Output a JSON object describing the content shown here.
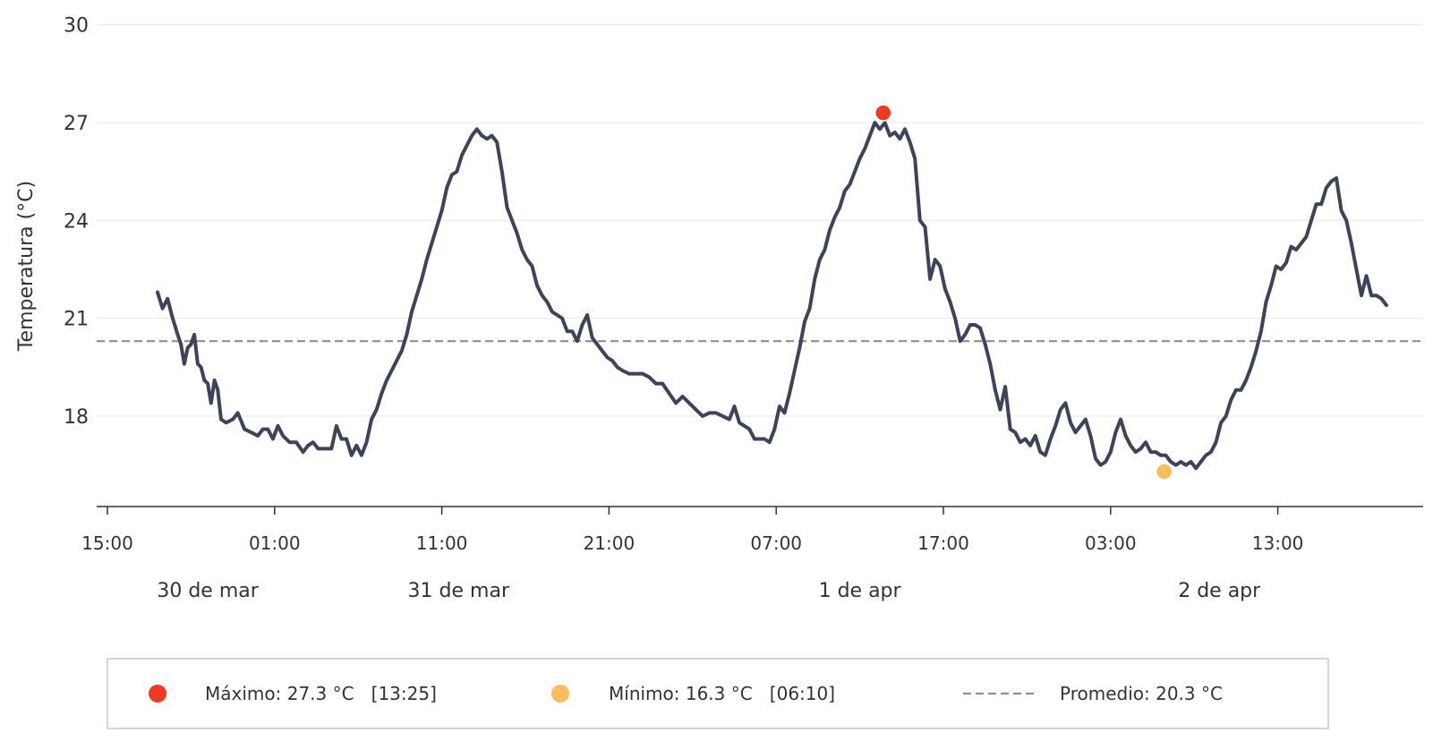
{
  "chart_data": {
    "type": "line",
    "ylabel": "Temperatura (°C)",
    "ylim": [
      14.2,
      30.1
    ],
    "yticks": [
      18,
      21,
      24,
      27,
      30
    ],
    "xlim_hours": [
      -0.3,
      78.9
    ],
    "grid": "horizontal",
    "x_ticks": [
      {
        "label": "15:00",
        "h": 0
      },
      {
        "label": "01:00",
        "h": 10
      },
      {
        "label": "11:00",
        "h": 20
      },
      {
        "label": "21:00",
        "h": 30
      },
      {
        "label": "07:00",
        "h": 40
      },
      {
        "label": "17:00",
        "h": 50
      },
      {
        "label": "03:00",
        "h": 60
      },
      {
        "label": "13:00",
        "h": 70
      }
    ],
    "date_labels": [
      {
        "label": "30 de mar",
        "h": 6
      },
      {
        "label": "31 de mar",
        "h": 21
      },
      {
        "label": "1 de apr",
        "h": 45
      },
      {
        "label": "2 de apr",
        "h": 66.5
      }
    ],
    "series": [
      {
        "color": "#3d4459",
        "points": [
          [
            3.0,
            21.8
          ],
          [
            3.3,
            21.3
          ],
          [
            3.6,
            21.6
          ],
          [
            3.9,
            21.0
          ],
          [
            4.2,
            20.5
          ],
          [
            4.4,
            20.2
          ],
          [
            4.6,
            19.6
          ],
          [
            4.8,
            20.1
          ],
          [
            5.0,
            20.2
          ],
          [
            5.2,
            20.5
          ],
          [
            5.4,
            19.6
          ],
          [
            5.6,
            19.5
          ],
          [
            5.8,
            19.1
          ],
          [
            6.0,
            19.0
          ],
          [
            6.2,
            18.4
          ],
          [
            6.4,
            19.1
          ],
          [
            6.6,
            18.8
          ],
          [
            6.8,
            17.9
          ],
          [
            7.1,
            17.8
          ],
          [
            7.5,
            17.9
          ],
          [
            7.8,
            18.1
          ],
          [
            8.2,
            17.6
          ],
          [
            8.6,
            17.5
          ],
          [
            9.0,
            17.4
          ],
          [
            9.3,
            17.6
          ],
          [
            9.6,
            17.6
          ],
          [
            9.9,
            17.3
          ],
          [
            10.2,
            17.7
          ],
          [
            10.5,
            17.4
          ],
          [
            10.9,
            17.2
          ],
          [
            11.3,
            17.2
          ],
          [
            11.7,
            16.9
          ],
          [
            12.0,
            17.1
          ],
          [
            12.3,
            17.2
          ],
          [
            12.6,
            17.0
          ],
          [
            13.0,
            17.0
          ],
          [
            13.4,
            17.0
          ],
          [
            13.7,
            17.7
          ],
          [
            14.0,
            17.3
          ],
          [
            14.3,
            17.3
          ],
          [
            14.6,
            16.8
          ],
          [
            14.9,
            17.1
          ],
          [
            15.2,
            16.8
          ],
          [
            15.5,
            17.2
          ],
          [
            15.8,
            17.9
          ],
          [
            16.1,
            18.2
          ],
          [
            16.4,
            18.7
          ],
          [
            16.7,
            19.1
          ],
          [
            17.0,
            19.4
          ],
          [
            17.3,
            19.7
          ],
          [
            17.6,
            20.0
          ],
          [
            17.9,
            20.5
          ],
          [
            18.2,
            21.2
          ],
          [
            18.5,
            21.7
          ],
          [
            18.8,
            22.2
          ],
          [
            19.1,
            22.8
          ],
          [
            19.4,
            23.3
          ],
          [
            19.7,
            23.8
          ],
          [
            20.0,
            24.3
          ],
          [
            20.3,
            25.0
          ],
          [
            20.6,
            25.4
          ],
          [
            20.9,
            25.5
          ],
          [
            21.2,
            26.0
          ],
          [
            21.5,
            26.3
          ],
          [
            21.8,
            26.6
          ],
          [
            22.1,
            26.8
          ],
          [
            22.4,
            26.6
          ],
          [
            22.7,
            26.5
          ],
          [
            23.0,
            26.6
          ],
          [
            23.3,
            26.4
          ],
          [
            23.6,
            25.5
          ],
          [
            23.9,
            24.4
          ],
          [
            24.2,
            24.0
          ],
          [
            24.5,
            23.6
          ],
          [
            24.8,
            23.1
          ],
          [
            25.1,
            22.8
          ],
          [
            25.4,
            22.6
          ],
          [
            25.7,
            22.0
          ],
          [
            26.0,
            21.7
          ],
          [
            26.3,
            21.5
          ],
          [
            26.6,
            21.2
          ],
          [
            26.9,
            21.1
          ],
          [
            27.2,
            21.0
          ],
          [
            27.5,
            20.6
          ],
          [
            27.8,
            20.6
          ],
          [
            28.1,
            20.3
          ],
          [
            28.4,
            20.8
          ],
          [
            28.7,
            21.1
          ],
          [
            29.0,
            20.4
          ],
          [
            29.3,
            20.2
          ],
          [
            29.6,
            20.0
          ],
          [
            29.9,
            19.8
          ],
          [
            30.2,
            19.7
          ],
          [
            30.5,
            19.5
          ],
          [
            30.8,
            19.4
          ],
          [
            31.2,
            19.3
          ],
          [
            31.6,
            19.3
          ],
          [
            32.0,
            19.3
          ],
          [
            32.4,
            19.2
          ],
          [
            32.8,
            19.0
          ],
          [
            33.2,
            19.0
          ],
          [
            33.6,
            18.7
          ],
          [
            34.0,
            18.4
          ],
          [
            34.4,
            18.6
          ],
          [
            34.8,
            18.4
          ],
          [
            35.2,
            18.2
          ],
          [
            35.6,
            18.0
          ],
          [
            36.0,
            18.1
          ],
          [
            36.4,
            18.1
          ],
          [
            36.8,
            18.0
          ],
          [
            37.2,
            17.9
          ],
          [
            37.5,
            18.3
          ],
          [
            37.8,
            17.8
          ],
          [
            38.1,
            17.7
          ],
          [
            38.4,
            17.6
          ],
          [
            38.7,
            17.3
          ],
          [
            39.0,
            17.3
          ],
          [
            39.3,
            17.3
          ],
          [
            39.6,
            17.2
          ],
          [
            39.9,
            17.6
          ],
          [
            40.2,
            18.3
          ],
          [
            40.5,
            18.1
          ],
          [
            40.8,
            18.7
          ],
          [
            41.1,
            19.4
          ],
          [
            41.4,
            20.1
          ],
          [
            41.7,
            20.9
          ],
          [
            42.0,
            21.3
          ],
          [
            42.3,
            22.2
          ],
          [
            42.6,
            22.8
          ],
          [
            42.9,
            23.1
          ],
          [
            43.2,
            23.7
          ],
          [
            43.5,
            24.1
          ],
          [
            43.8,
            24.4
          ],
          [
            44.1,
            24.9
          ],
          [
            44.4,
            25.1
          ],
          [
            44.7,
            25.5
          ],
          [
            45.0,
            25.9
          ],
          [
            45.3,
            26.2
          ],
          [
            45.6,
            26.6
          ],
          [
            45.9,
            27.0
          ],
          [
            46.2,
            26.8
          ],
          [
            46.5,
            27.0
          ],
          [
            46.8,
            26.6
          ],
          [
            47.1,
            26.7
          ],
          [
            47.4,
            26.5
          ],
          [
            47.7,
            26.8
          ],
          [
            48.0,
            26.4
          ],
          [
            48.3,
            25.9
          ],
          [
            48.6,
            24.0
          ],
          [
            48.9,
            23.8
          ],
          [
            49.2,
            22.2
          ],
          [
            49.5,
            22.8
          ],
          [
            49.8,
            22.6
          ],
          [
            50.1,
            21.9
          ],
          [
            50.4,
            21.5
          ],
          [
            50.7,
            21.0
          ],
          [
            51.0,
            20.3
          ],
          [
            51.3,
            20.5
          ],
          [
            51.6,
            20.8
          ],
          [
            51.9,
            20.8
          ],
          [
            52.2,
            20.7
          ],
          [
            52.5,
            20.2
          ],
          [
            52.8,
            19.6
          ],
          [
            53.1,
            18.8
          ],
          [
            53.4,
            18.2
          ],
          [
            53.7,
            18.9
          ],
          [
            54.0,
            17.6
          ],
          [
            54.3,
            17.5
          ],
          [
            54.6,
            17.2
          ],
          [
            54.9,
            17.3
          ],
          [
            55.2,
            17.1
          ],
          [
            55.5,
            17.4
          ],
          [
            55.8,
            16.9
          ],
          [
            56.1,
            16.8
          ],
          [
            56.4,
            17.3
          ],
          [
            56.7,
            17.7
          ],
          [
            57.0,
            18.2
          ],
          [
            57.3,
            18.4
          ],
          [
            57.6,
            17.8
          ],
          [
            57.9,
            17.5
          ],
          [
            58.2,
            17.7
          ],
          [
            58.5,
            17.9
          ],
          [
            58.8,
            17.4
          ],
          [
            59.1,
            16.7
          ],
          [
            59.4,
            16.5
          ],
          [
            59.7,
            16.6
          ],
          [
            60.0,
            16.9
          ],
          [
            60.3,
            17.5
          ],
          [
            60.6,
            17.9
          ],
          [
            60.9,
            17.4
          ],
          [
            61.2,
            17.1
          ],
          [
            61.5,
            16.9
          ],
          [
            61.8,
            17.0
          ],
          [
            62.1,
            17.2
          ],
          [
            62.4,
            16.9
          ],
          [
            62.7,
            16.9
          ],
          [
            63.0,
            16.8
          ],
          [
            63.3,
            16.8
          ],
          [
            63.6,
            16.6
          ],
          [
            63.9,
            16.5
          ],
          [
            64.2,
            16.6
          ],
          [
            64.5,
            16.5
          ],
          [
            64.8,
            16.6
          ],
          [
            65.1,
            16.4
          ],
          [
            65.4,
            16.6
          ],
          [
            65.7,
            16.8
          ],
          [
            66.0,
            16.9
          ],
          [
            66.3,
            17.2
          ],
          [
            66.6,
            17.8
          ],
          [
            66.9,
            18.0
          ],
          [
            67.2,
            18.5
          ],
          [
            67.5,
            18.8
          ],
          [
            67.8,
            18.8
          ],
          [
            68.1,
            19.1
          ],
          [
            68.4,
            19.5
          ],
          [
            68.7,
            20.0
          ],
          [
            69.0,
            20.6
          ],
          [
            69.3,
            21.5
          ],
          [
            69.6,
            22.0
          ],
          [
            69.9,
            22.6
          ],
          [
            70.2,
            22.5
          ],
          [
            70.5,
            22.7
          ],
          [
            70.8,
            23.2
          ],
          [
            71.1,
            23.1
          ],
          [
            71.4,
            23.3
          ],
          [
            71.7,
            23.5
          ],
          [
            72.0,
            24.0
          ],
          [
            72.3,
            24.5
          ],
          [
            72.6,
            24.5
          ],
          [
            72.9,
            25.0
          ],
          [
            73.2,
            25.2
          ],
          [
            73.5,
            25.3
          ],
          [
            73.8,
            24.3
          ],
          [
            74.1,
            24.0
          ],
          [
            74.4,
            23.3
          ],
          [
            74.7,
            22.5
          ],
          [
            75.0,
            21.7
          ],
          [
            75.3,
            22.3
          ],
          [
            75.6,
            21.7
          ],
          [
            75.9,
            21.7
          ],
          [
            76.2,
            21.6
          ],
          [
            76.5,
            21.4
          ]
        ]
      }
    ],
    "hline": {
      "y": 20.3,
      "style": "dashed",
      "color": "#8f8f8f"
    },
    "markers": [
      {
        "name": "max",
        "h": 46.4,
        "y": 27.3,
        "color": "#f03a22"
      },
      {
        "name": "min",
        "h": 63.2,
        "y": 16.3,
        "color": "#fbbd5b"
      }
    ],
    "legend": {
      "placement": "bottom",
      "items": [
        {
          "label": "Máximo: 27.3 °C   [13:25]",
          "marker": "circle",
          "color": "#f03a22"
        },
        {
          "label": "Mínimo: 16.3 °C   [06:10]",
          "marker": "circle",
          "color": "#fbbd5b"
        },
        {
          "label": "Promedio: 20.3 °C",
          "marker": "dashed-line",
          "color": "#8f8f8f"
        }
      ]
    }
  }
}
